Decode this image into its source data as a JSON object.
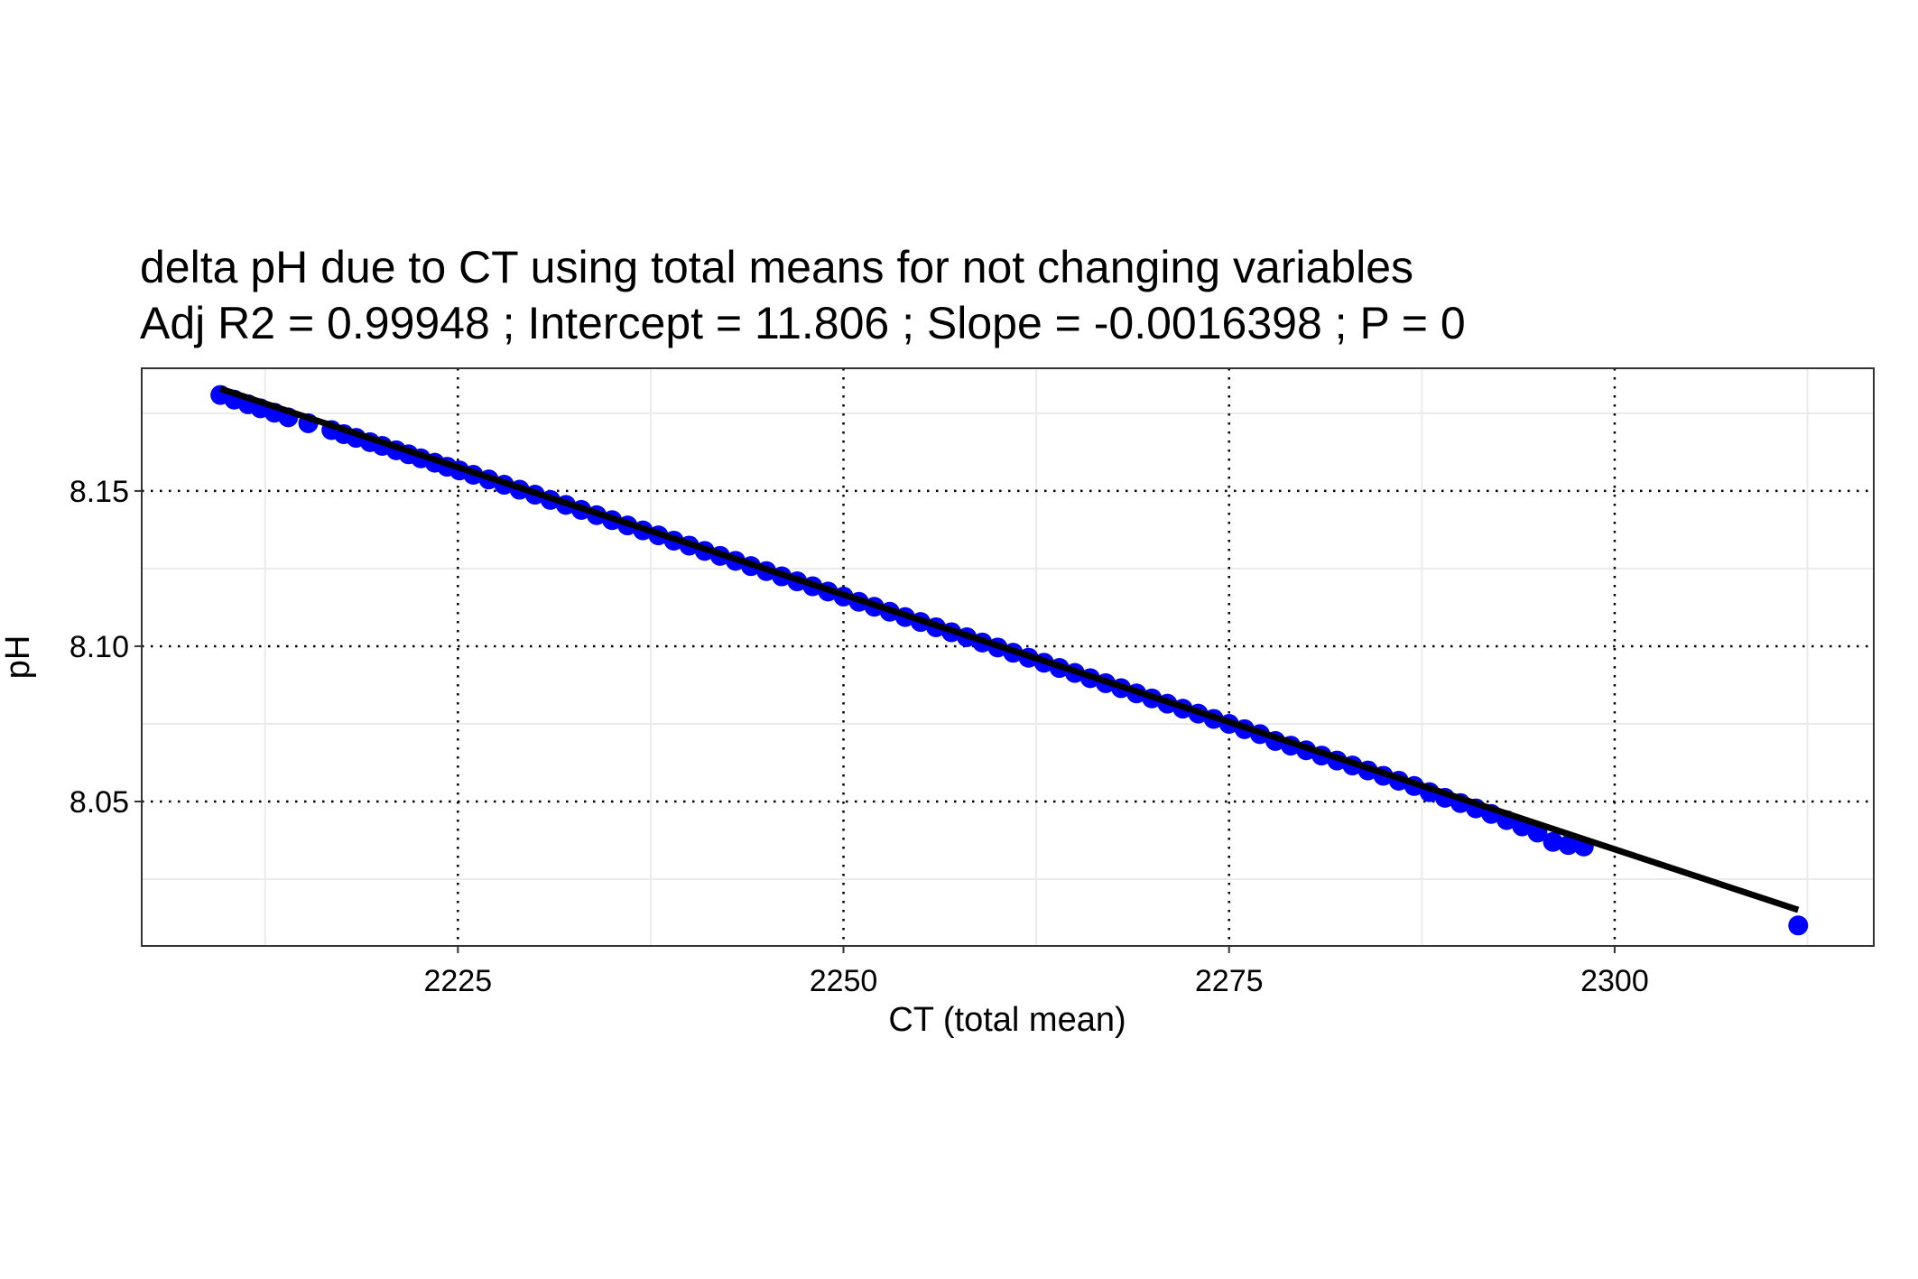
{
  "chart_data": {
    "type": "scatter",
    "title": "delta pH due to CT using total means for not changing variables",
    "subtitle": "Adj R2 =  0.99948 ; Intercept = 11.806 ; Slope = -0.0016398 ; P = 0",
    "xlabel": "CT (total mean)",
    "ylabel": "pH",
    "xlim": [
      2204.5,
      2316.8
    ],
    "ylim": [
      8.0035,
      8.1895
    ],
    "x_ticks": [
      2225,
      2250,
      2275,
      2300
    ],
    "x_tick_labels": [
      "2225",
      "2250",
      "2275",
      "2300"
    ],
    "y_ticks": [
      8.05,
      8.1,
      8.15
    ],
    "y_tick_labels": [
      "8.05",
      "8.10",
      "8.15"
    ],
    "grid": true,
    "point_color": "#0000ff",
    "line_color": "#000000",
    "fit_line": {
      "x": [
        2209.6,
        2311.9
      ],
      "y": [
        8.1829,
        8.0151
      ]
    },
    "series": [
      {
        "type": "scatter",
        "x": [
          2209.6,
          2210.5,
          2211.4,
          2212.2,
          2213.1,
          2214.0,
          2215.3,
          2216.8,
          2217.6,
          2218.4,
          2219.3,
          2220.1,
          2221.0,
          2221.8,
          2222.6,
          2223.5,
          2224.3,
          2225.1,
          2226.0,
          2227.0,
          2228.0,
          2229.0,
          2230.0,
          2231.0,
          2232.0,
          2233.0,
          2234.0,
          2235.0,
          2236.0,
          2237.0,
          2238.0,
          2239.0,
          2240.0,
          2241.0,
          2242.0,
          2243.0,
          2244.0,
          2245.0,
          2246.0,
          2247.0,
          2248.0,
          2249.0,
          2250.0,
          2251.0,
          2252.0,
          2253.0,
          2254.0,
          2255.0,
          2256.0,
          2257.0,
          2258.0,
          2259.0,
          2260.0,
          2261.0,
          2262.0,
          2263.0,
          2264.0,
          2265.0,
          2266.0,
          2267.0,
          2268.0,
          2269.0,
          2270.0,
          2271.0,
          2272.0,
          2273.0,
          2274.0,
          2275.0,
          2276.0,
          2277.0,
          2278.0,
          2279.0,
          2280.0,
          2281.0,
          2282.0,
          2283.0,
          2284.0,
          2285.0,
          2286.0,
          2287.0,
          2288.0,
          2289.0,
          2290.0,
          2291.0,
          2292.0,
          2293.0,
          2294.0,
          2295.0,
          2296.0,
          2297.0,
          2298.0,
          2311.9
        ],
        "y": [
          8.1809,
          8.1794,
          8.1779,
          8.1766,
          8.1752,
          8.1737,
          8.1718,
          8.1696,
          8.1683,
          8.1671,
          8.1657,
          8.1645,
          8.1631,
          8.1618,
          8.1605,
          8.1591,
          8.1578,
          8.1566,
          8.1552,
          8.1537,
          8.152,
          8.1504,
          8.1488,
          8.1471,
          8.1455,
          8.1439,
          8.1422,
          8.1406,
          8.1389,
          8.1373,
          8.1357,
          8.134,
          8.1324,
          8.1307,
          8.1291,
          8.1275,
          8.1258,
          8.1242,
          8.1225,
          8.1209,
          8.1193,
          8.1176,
          8.116,
          8.1143,
          8.1127,
          8.1111,
          8.1094,
          8.1078,
          8.1061,
          8.1045,
          8.1029,
          8.1012,
          8.0996,
          8.0979,
          8.0963,
          8.0947,
          8.093,
          8.0914,
          8.0897,
          8.0881,
          8.0865,
          8.0848,
          8.0832,
          8.0815,
          8.0799,
          8.0783,
          8.0766,
          8.075,
          8.0733,
          8.0717,
          8.0695,
          8.068,
          8.0665,
          8.0648,
          8.0632,
          8.0616,
          8.06,
          8.0583,
          8.0567,
          8.055,
          8.053,
          8.0512,
          8.0495,
          8.0478,
          8.046,
          8.044,
          8.042,
          8.04,
          8.037,
          8.036,
          8.0355,
          8.0101
        ]
      }
    ]
  }
}
